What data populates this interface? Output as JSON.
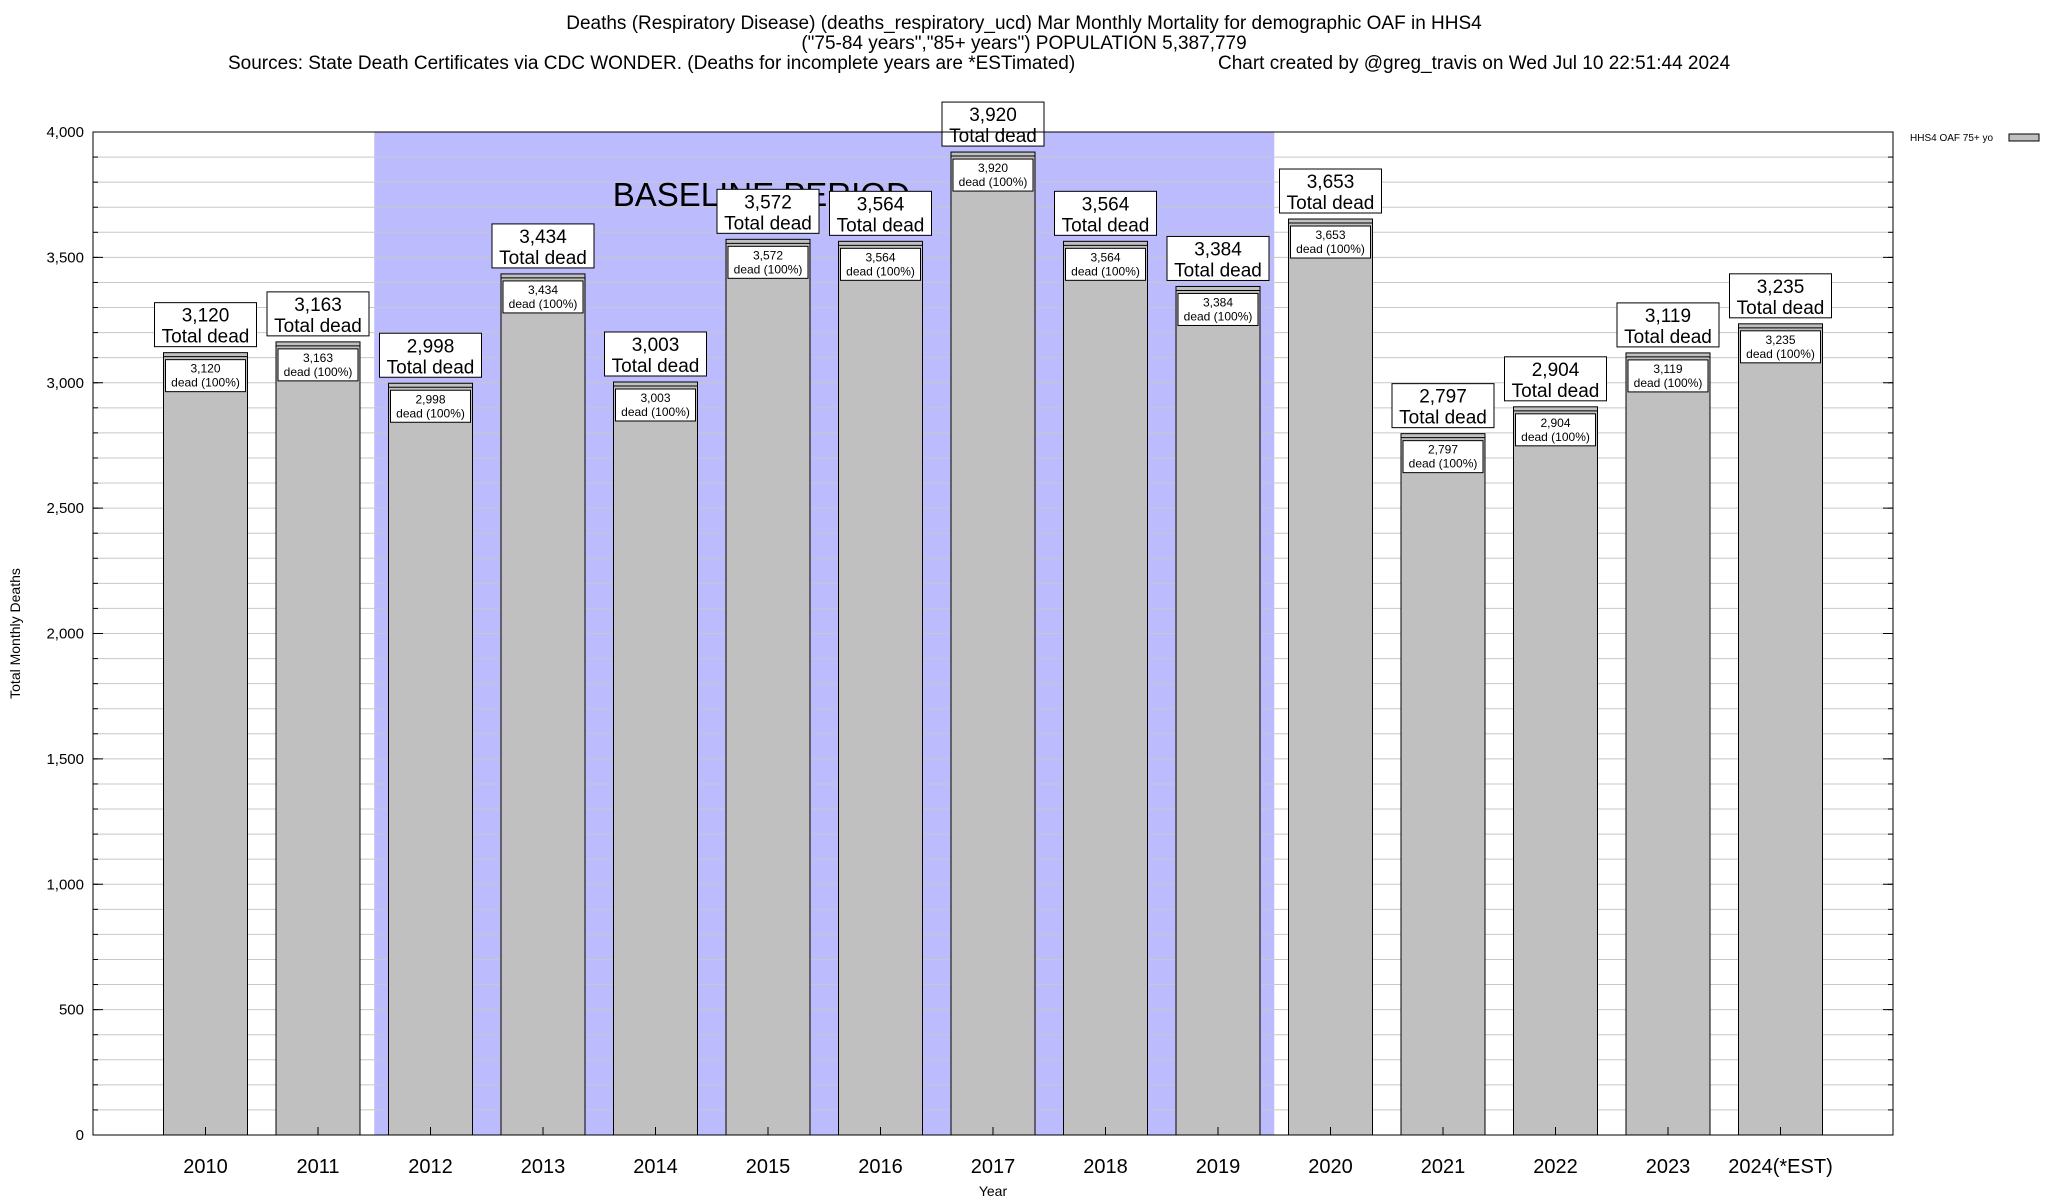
{
  "title": {
    "line1": "Deaths (Respiratory Disease) (deaths_respiratory_ucd) Mar Monthly Mortality for demographic OAF in HHS4",
    "line2": "(\"75-84 years\",\"85+ years\") POPULATION 5,387,779",
    "sources": "Sources: State Death Certificates via CDC WONDER. (Deaths for incomplete years are *ESTimated)",
    "credit": "Chart created by @greg_travis on Wed Jul 10 22:51:44 2024"
  },
  "chart_data": {
    "type": "bar",
    "categories": [
      "2010",
      "2011",
      "2012",
      "2013",
      "2014",
      "2015",
      "2016",
      "2017",
      "2018",
      "2019",
      "2020",
      "2021",
      "2022",
      "2023",
      "2024(*EST)"
    ],
    "series": [
      {
        "name": "HHS4 OAF 75+ yo",
        "values": [
          3120,
          3163,
          2998,
          3434,
          3003,
          3572,
          3564,
          3920,
          3564,
          3384,
          3653,
          2797,
          2904,
          3119,
          3235
        ]
      }
    ],
    "value_labels": [
      "3,120",
      "3,163",
      "2,998",
      "3,434",
      "3,003",
      "3,572",
      "3,564",
      "3,920",
      "3,564",
      "3,384",
      "3,653",
      "2,797",
      "2,904",
      "3,119",
      "3,235"
    ],
    "total_label": "Total dead",
    "inner_label": "dead (100%)",
    "xlabel": "Year",
    "ylabel": "Total Monthly Deaths",
    "ylim": [
      0,
      4000
    ],
    "y_ticks": [
      0,
      500,
      1000,
      1500,
      2000,
      2500,
      3000,
      3500,
      4000
    ],
    "y_tick_labels": [
      "0",
      "500",
      "1,000",
      "1,500",
      "2,000",
      "2,500",
      "3,000",
      "3,500",
      "4,000"
    ],
    "minor_grid_step": 100,
    "grid": true,
    "legend_position": "top-right",
    "baseline": {
      "label": "BASELINE PERIOD",
      "from": "2012",
      "to": "2019"
    },
    "colors": {
      "bar": "#c0c0c0",
      "baseline_band": "#bbbbfd",
      "grid": "#c8c8c8"
    }
  }
}
